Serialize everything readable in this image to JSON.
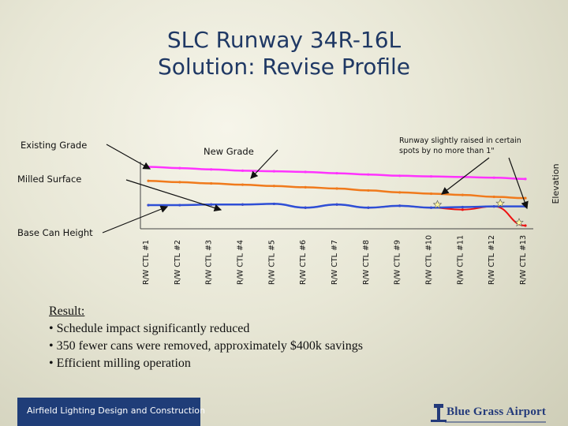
{
  "title": {
    "line1": "SLC Runway 34R-16L",
    "line2": "Solution:  Revise Profile"
  },
  "labels": {
    "existing_grade": "Existing Grade",
    "new_grade": "New Grade",
    "milled_surface": "Milled Surface",
    "base_can_height": "Base Can Height",
    "runway_note_1": "Runway slightly raised in certain",
    "runway_note_2": "spots by no more than 1\""
  },
  "colors": {
    "existing_grade": "#ff33ff",
    "new_grade": "#f07a1c",
    "milled_surface": "#2e4fd6",
    "base_can_height": "#ee1111",
    "title": "#1f3864",
    "footer": "#1f3d78"
  },
  "chart_data": {
    "type": "line",
    "ylabel": "Elevation",
    "categories": [
      "R/W CTL #1",
      "R/W CTL #2",
      "R/W CTL #3",
      "R/W CTL #4",
      "R/W CTL #5",
      "R/W CTL #6",
      "R/W CTL #7",
      "R/W CTL #8",
      "R/W CTL #9",
      "R/W CTL #10",
      "R/W CTL #11",
      "R/W CTL #12",
      "R/W CTL #13"
    ],
    "series": [
      {
        "name": "Existing Grade",
        "values": [
          82,
          80,
          78,
          76,
          75,
          74,
          72,
          70,
          68,
          67,
          66,
          65,
          63
        ]
      },
      {
        "name": "New Grade",
        "values": [
          60,
          58,
          56,
          54,
          52,
          50,
          48,
          45,
          42,
          40,
          38,
          35,
          33
        ]
      },
      {
        "name": "Milled Surface",
        "values": [
          22,
          22,
          23,
          23,
          24,
          18,
          23,
          18,
          21,
          18,
          19,
          20,
          20
        ]
      },
      {
        "name": "Base Can Height",
        "values": [
          22,
          22,
          23,
          23,
          24,
          18,
          23,
          18,
          21,
          18,
          15,
          20,
          -10
        ]
      }
    ],
    "ylim": [
      -15,
      90
    ],
    "grid": false,
    "legend": "labels-with-arrows"
  },
  "result": {
    "heading": "Result:",
    "bullets": [
      "• Schedule impact significantly reduced",
      "• 350 fewer cans were removed, approximately $400k savings",
      "• Efficient milling operation"
    ]
  },
  "footer": {
    "left_text": "Airfield Lighting Design and Construction",
    "logo_text": "Blue Grass Airport"
  }
}
